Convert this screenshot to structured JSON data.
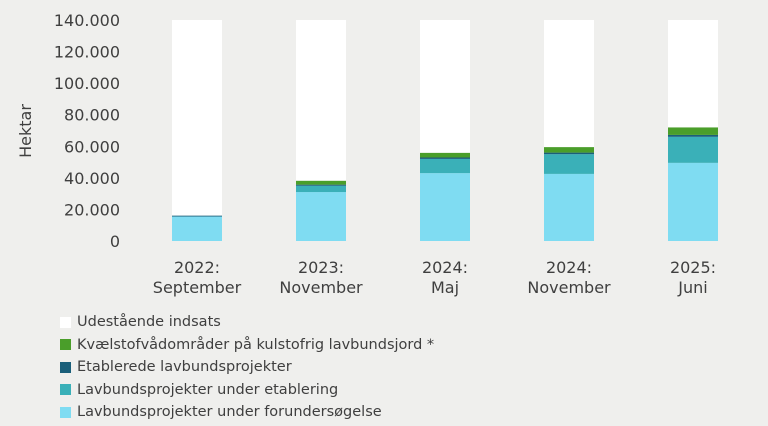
{
  "chart_data": {
    "type": "bar",
    "stacked": true,
    "ylabel": "Hektar",
    "ylim": [
      0,
      140000
    ],
    "yticks": [
      0,
      20000,
      40000,
      60000,
      80000,
      100000,
      120000,
      140000
    ],
    "ytick_labels": [
      "0",
      "20.000",
      "40.000",
      "60.000",
      "80.000",
      "100.000",
      "120.000",
      "140.000"
    ],
    "categories": [
      [
        "2022:",
        "September"
      ],
      [
        "2023:",
        "November"
      ],
      [
        "2024:",
        "Maj"
      ],
      [
        "2024:",
        "November"
      ],
      [
        "2025:",
        "Juni"
      ]
    ],
    "series": [
      {
        "name": "Lavbundsprojekter under forundersøgelse",
        "color": "#7fdcf2",
        "values": [
          15500,
          31000,
          43000,
          42500,
          49500
        ]
      },
      {
        "name": "Lavbundsprojekter under etablering",
        "color": "#3ab0b8",
        "values": [
          0,
          4000,
          9000,
          12500,
          16500
        ]
      },
      {
        "name": "Etablerede lavbundsprojekter",
        "color": "#1a5f7a",
        "values": [
          600,
          700,
          900,
          1000,
          1200
        ]
      },
      {
        "name": "Kvælstofvådområder på kulstofrig lavbundsjord *",
        "color": "#4a9e2a",
        "values": [
          0,
          2500,
          3000,
          3500,
          4800
        ]
      },
      {
        "name": "Udestående indsats",
        "color": "#ffffff",
        "values": [
          123900,
          101800,
          84100,
          80500,
          68000
        ]
      }
    ],
    "legend_order": [
      4,
      3,
      2,
      1,
      0
    ]
  }
}
